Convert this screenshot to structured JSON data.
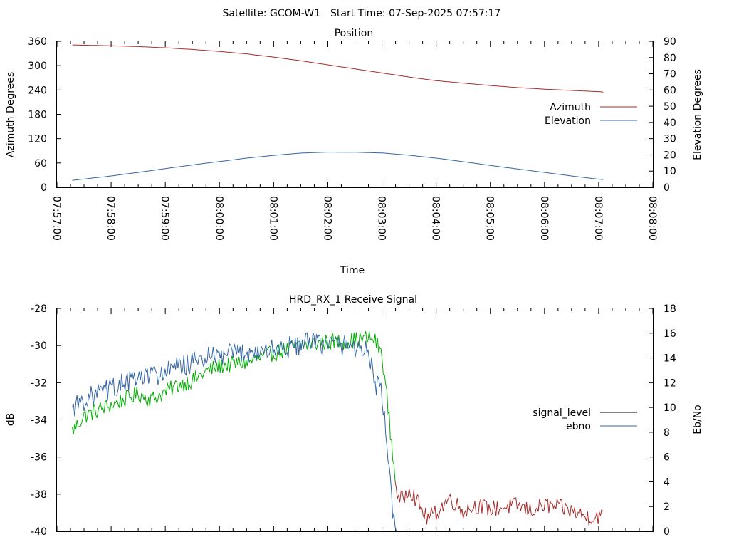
{
  "header": {
    "satellite": "Satellite: GCOM-W1",
    "start_time": "Start Time: 07-Sep-2025 07:57:17"
  },
  "colors": {
    "azimuth": "#a52a2a",
    "elevation": "#3465a4",
    "signal_level": "#000000",
    "ebno": "#3465a4",
    "series_green": "#00b000",
    "series_red": "#a52a2a",
    "axis": "#000000"
  },
  "chart_data": [
    {
      "type": "line",
      "title": "Position",
      "xlabel": "Time",
      "ylabel": "Azimuth Degrees",
      "y2label": "Elevation Degrees",
      "xlim": [
        "07:57:00",
        "08:08:00"
      ],
      "ylim": [
        0,
        360
      ],
      "y2lim": [
        0,
        90
      ],
      "x_ticks": [
        "07:57:00",
        "07:58:00",
        "07:59:00",
        "08:00:00",
        "08:01:00",
        "08:02:00",
        "08:03:00",
        "08:04:00",
        "08:05:00",
        "08:06:00",
        "08:07:00",
        "08:08:00"
      ],
      "y_ticks": [
        "0",
        "60",
        "120",
        "180",
        "240",
        "300",
        "360"
      ],
      "y2_ticks": [
        "0",
        "10",
        "20",
        "30",
        "40",
        "50",
        "60",
        "70",
        "80",
        "90"
      ],
      "grid": false,
      "legend_position": "right",
      "series": [
        {
          "name": "Azimuth",
          "axis": "left",
          "x": [
            "07:57:17",
            "07:58:00",
            "07:58:30",
            "07:59:00",
            "07:59:30",
            "08:00:00",
            "08:00:30",
            "08:01:00",
            "08:01:30",
            "08:02:00",
            "08:02:30",
            "08:03:00",
            "08:03:30",
            "08:04:00",
            "08:04:30",
            "08:05:00",
            "08:05:30",
            "08:06:00",
            "08:06:30",
            "08:07:00",
            "08:07:05"
          ],
          "values": [
            351,
            349,
            347,
            344,
            340,
            335,
            329,
            321,
            312,
            302,
            292,
            282,
            272,
            263,
            257,
            251,
            246,
            242,
            239,
            236,
            235
          ]
        },
        {
          "name": "Elevation",
          "axis": "right",
          "x": [
            "07:57:17",
            "07:58:00",
            "07:58:30",
            "07:59:00",
            "07:59:30",
            "08:00:00",
            "08:00:30",
            "08:01:00",
            "08:01:30",
            "08:02:00",
            "08:02:30",
            "08:03:00",
            "08:03:30",
            "08:04:00",
            "08:04:30",
            "08:05:00",
            "08:05:30",
            "08:06:00",
            "08:06:30",
            "08:07:00",
            "08:07:05"
          ],
          "values": [
            4.3,
            7.0,
            9.2,
            11.5,
            13.8,
            15.9,
            18.0,
            19.7,
            21.1,
            21.7,
            21.6,
            21.2,
            19.8,
            18.0,
            15.8,
            13.5,
            11.3,
            9.2,
            7.0,
            5.0,
            4.8
          ]
        }
      ]
    },
    {
      "type": "line",
      "title": "HRD_RX_1 Receive Signal",
      "xlabel": "",
      "ylabel": "dB",
      "y2label": "Eb/No",
      "xlim": [
        "07:57:00",
        "08:08:00"
      ],
      "ylim": [
        -40,
        -28
      ],
      "y2lim": [
        0,
        18
      ],
      "y_ticks": [
        "-28",
        "-30",
        "-32",
        "-34",
        "-36",
        "-38",
        "-40"
      ],
      "y2_ticks": [
        "18",
        "16",
        "14",
        "12",
        "10",
        "8",
        "6",
        "4",
        "2",
        "0"
      ],
      "grid": false,
      "legend_position": "right",
      "series": [
        {
          "name": "signal_level",
          "axis": "left",
          "x": [
            "07:57:17",
            "07:57:30",
            "07:57:45",
            "07:58:00",
            "07:58:15",
            "07:58:30",
            "07:58:45",
            "07:59:00",
            "07:59:15",
            "07:59:30",
            "07:59:45",
            "08:00:00",
            "08:00:15",
            "08:00:30",
            "08:00:45",
            "08:01:00",
            "08:01:15",
            "08:01:30",
            "08:01:45",
            "08:02:00",
            "08:02:15",
            "08:02:30",
            "08:02:45",
            "08:02:52",
            "08:03:00",
            "08:03:06",
            "08:03:12",
            "08:03:18",
            "08:03:24",
            "08:03:30",
            "08:03:40",
            "08:03:50",
            "08:04:00",
            "08:04:15",
            "08:04:30",
            "08:04:45",
            "08:05:00",
            "08:05:15",
            "08:05:30",
            "08:05:45",
            "08:06:00",
            "08:06:15",
            "08:06:30",
            "08:06:45",
            "08:07:00",
            "08:07:05"
          ],
          "values": [
            -34.6,
            -33.8,
            -33.5,
            -33.2,
            -32.9,
            -32.6,
            -32.9,
            -32.5,
            -32.1,
            -31.9,
            -31.4,
            -31.1,
            -31.0,
            -30.9,
            -30.7,
            -30.4,
            -30.2,
            -30.0,
            -29.9,
            -29.8,
            -29.8,
            -29.7,
            -29.6,
            -29.7,
            -30.5,
            -33.0,
            -36.0,
            -38.4,
            -38.2,
            -37.6,
            -38.5,
            -39.3,
            -39.0,
            -38.2,
            -38.9,
            -38.6,
            -38.8,
            -38.7,
            -38.6,
            -38.9,
            -38.6,
            -38.7,
            -38.9,
            -39.2,
            -39.2,
            -39.2
          ]
        },
        {
          "name": "ebno",
          "axis": "right",
          "x": [
            "07:57:17",
            "07:57:30",
            "07:57:45",
            "07:58:00",
            "07:58:15",
            "07:58:30",
            "07:58:45",
            "07:59:00",
            "07:59:15",
            "07:59:30",
            "07:59:45",
            "08:00:00",
            "08:00:15",
            "08:00:30",
            "08:00:45",
            "08:01:00",
            "08:01:15",
            "08:01:30",
            "08:01:45",
            "08:02:00",
            "08:02:15",
            "08:02:30",
            "08:02:45",
            "08:02:52",
            "08:03:00",
            "08:03:04",
            "08:03:08",
            "08:03:12",
            "08:03:16"
          ],
          "values": [
            10.0,
            10.6,
            11.1,
            11.5,
            12.0,
            12.3,
            12.6,
            12.8,
            13.3,
            13.6,
            14.0,
            14.1,
            14.3,
            14.5,
            14.5,
            14.7,
            14.8,
            15.1,
            15.2,
            15.1,
            15.1,
            14.9,
            14.6,
            12.0,
            11.2,
            8.0,
            4.5,
            1.5,
            0.0
          ]
        }
      ]
    }
  ]
}
